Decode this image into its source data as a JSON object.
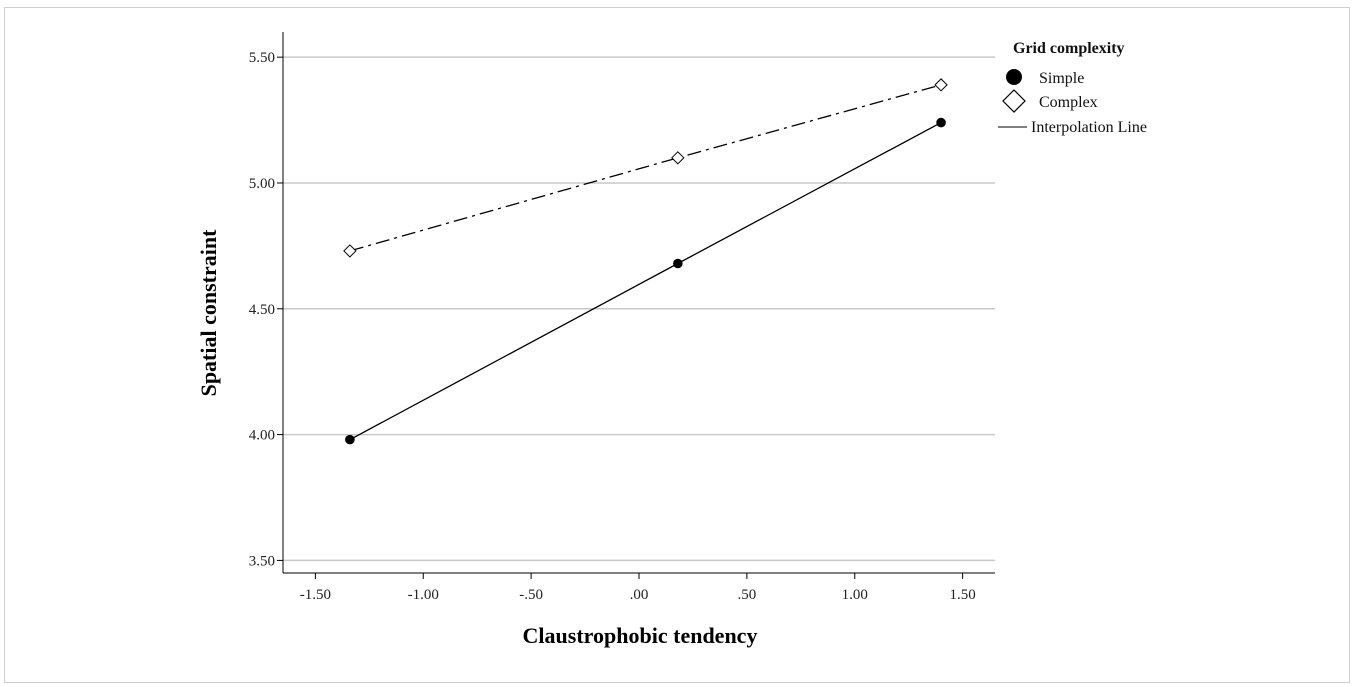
{
  "chart_data": {
    "type": "line",
    "xlabel": "Claustrophobic tendency",
    "ylabel": "Spatial constraint",
    "xlim": [
      -1.65,
      1.65
    ],
    "ylim": [
      3.45,
      5.6
    ],
    "x_ticks": [
      -1.5,
      -1.0,
      -0.5,
      0.0,
      0.5,
      1.0,
      1.5
    ],
    "x_tick_labels": [
      "-1.50",
      "-1.00",
      "-.50",
      ".00",
      ".50",
      "1.00",
      "1.50"
    ],
    "y_ticks": [
      3.5,
      4.0,
      4.5,
      5.0,
      5.5
    ],
    "y_tick_labels": [
      "3.50",
      "4.00",
      "4.50",
      "5.00",
      "5.50"
    ],
    "grid": "horizontal",
    "legend": {
      "title": "Grid complexity",
      "placement": "top-right",
      "interpolation_label": "Interpolation Line"
    },
    "series": [
      {
        "name": "Simple",
        "marker": "filled-circle",
        "line_style": "solid",
        "color": "#000000",
        "x": [
          -1.34,
          0.18,
          1.4
        ],
        "y": [
          3.98,
          4.68,
          5.24
        ]
      },
      {
        "name": "Complex",
        "marker": "open-diamond",
        "line_style": "dash-dot",
        "color": "#000000",
        "x": [
          -1.34,
          0.18,
          1.4
        ],
        "y": [
          4.73,
          5.1,
          5.39
        ]
      }
    ]
  }
}
